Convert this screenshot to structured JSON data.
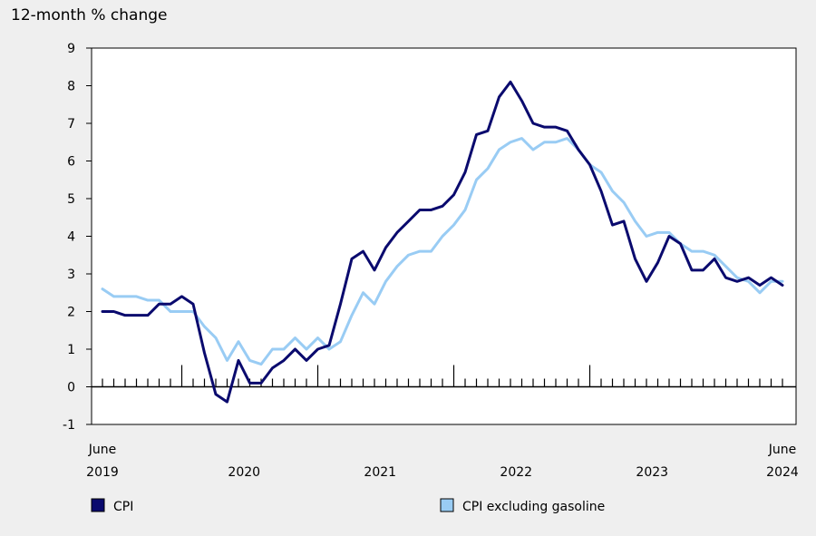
{
  "chart_data": {
    "type": "line",
    "ylabel": "12-month % change",
    "ylim": [
      -1,
      9
    ],
    "yticks": [
      -1,
      0,
      1,
      2,
      3,
      4,
      5,
      6,
      7,
      8,
      9
    ],
    "x_start": "2019-06",
    "x_end": "2024-06",
    "x_edge_labels": {
      "start": [
        "June",
        "2019"
      ],
      "end": [
        "June",
        "2024"
      ]
    },
    "x_year_labels": [
      {
        "month": "2020-01",
        "label": "2020"
      },
      {
        "month": "2021-01",
        "label": "2021"
      },
      {
        "month": "2022-01",
        "label": "2022"
      },
      {
        "month": "2023-01",
        "label": "2023"
      }
    ],
    "grid": false,
    "legend_position": "bottom",
    "series": [
      {
        "name": "CPI",
        "color": "#0a0a6e",
        "values": [
          2.0,
          2.0,
          1.9,
          1.9,
          1.9,
          2.2,
          2.2,
          2.4,
          2.2,
          0.9,
          -0.2,
          -0.4,
          0.7,
          0.1,
          0.1,
          0.5,
          0.7,
          1.0,
          0.7,
          1.0,
          1.1,
          2.2,
          3.4,
          3.6,
          3.1,
          3.7,
          4.1,
          4.4,
          4.7,
          4.7,
          4.8,
          5.1,
          5.7,
          6.7,
          6.8,
          7.7,
          8.1,
          7.6,
          7.0,
          6.9,
          6.9,
          6.8,
          6.3,
          5.9,
          5.2,
          4.3,
          4.4,
          3.4,
          2.8,
          3.3,
          4.0,
          3.8,
          3.1,
          3.1,
          3.4,
          2.9,
          2.8,
          2.9,
          2.7,
          2.9,
          2.7
        ]
      },
      {
        "name": "CPI excluding gasoline",
        "color": "#99ccf4",
        "values": [
          2.6,
          2.4,
          2.4,
          2.4,
          2.3,
          2.3,
          2.0,
          2.0,
          2.0,
          1.6,
          1.3,
          0.7,
          1.2,
          0.7,
          0.6,
          1.0,
          1.0,
          1.3,
          1.0,
          1.3,
          1.0,
          1.2,
          1.9,
          2.5,
          2.2,
          2.8,
          3.2,
          3.5,
          3.6,
          3.6,
          4.0,
          4.3,
          4.7,
          5.5,
          5.8,
          6.3,
          6.5,
          6.6,
          6.3,
          6.5,
          6.5,
          6.6,
          6.3,
          5.9,
          5.7,
          5.2,
          4.9,
          4.4,
          4.0,
          4.1,
          4.1,
          3.8,
          3.6,
          3.6,
          3.5,
          3.2,
          2.9,
          2.8,
          2.5,
          2.8,
          2.8
        ]
      }
    ]
  }
}
